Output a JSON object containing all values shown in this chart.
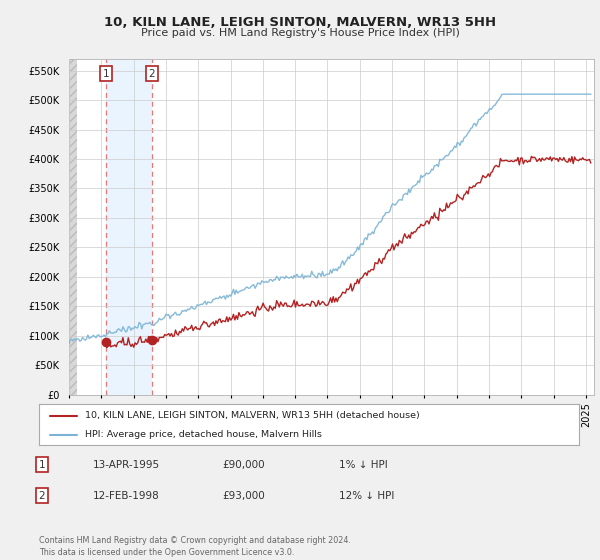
{
  "title": "10, KILN LANE, LEIGH SINTON, MALVERN, WR13 5HH",
  "subtitle": "Price paid vs. HM Land Registry's House Price Index (HPI)",
  "ylim": [
    0,
    570000
  ],
  "yticks": [
    0,
    50000,
    100000,
    150000,
    200000,
    250000,
    300000,
    350000,
    400000,
    450000,
    500000,
    550000
  ],
  "xlim_start": 1993.0,
  "xlim_end": 2025.5,
  "hpi_color": "#7ab3d4",
  "price_color": "#b22222",
  "sale1_date": 1995.28,
  "sale1_price": 90000,
  "sale1_label": "1",
  "sale2_date": 1998.12,
  "sale2_price": 93000,
  "sale2_label": "2",
  "legend_entry1": "10, KILN LANE, LEIGH SINTON, MALVERN, WR13 5HH (detached house)",
  "legend_entry2": "HPI: Average price, detached house, Malvern Hills",
  "table_row1": [
    "1",
    "13-APR-1995",
    "£90,000",
    "1% ↓ HPI"
  ],
  "table_row2": [
    "2",
    "12-FEB-1998",
    "£93,000",
    "12% ↓ HPI"
  ],
  "footer": "Contains HM Land Registry data © Crown copyright and database right 2024.\nThis data is licensed under the Open Government Licence v3.0.",
  "background_color": "#f0f0f0",
  "plot_bg_color": "#ffffff",
  "grid_color": "#cccccc",
  "hatch_color": "#d8d8d8",
  "shade_between_color": "#ddeeff"
}
